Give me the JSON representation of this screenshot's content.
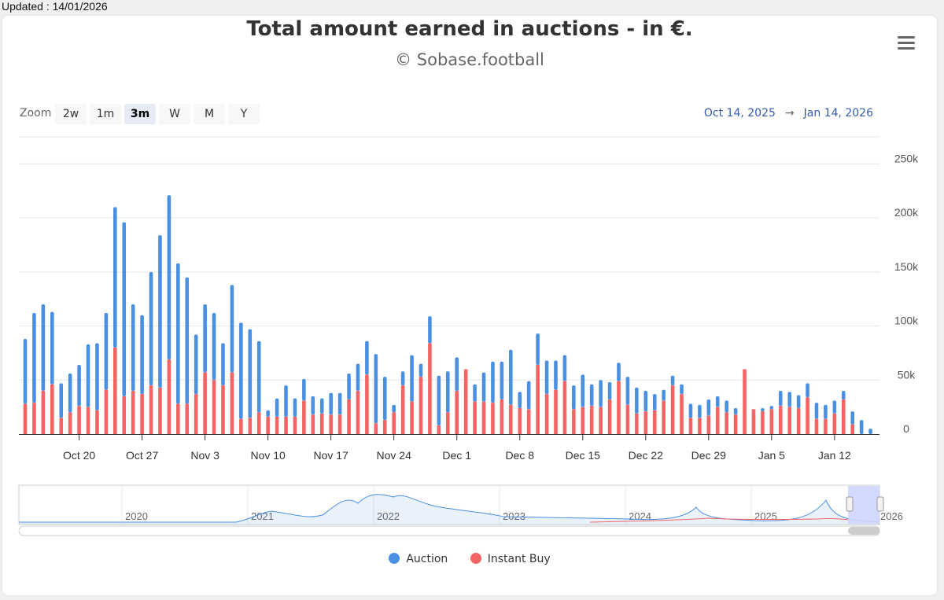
{
  "updated_label": "Updated : 14/01/2026",
  "colors": {
    "auction": "#4a90e2",
    "instant": "#f56464",
    "grid": "#e6e6e6",
    "navigator_mask": "#cfd6ff"
  },
  "chart_data": {
    "type": "bar",
    "stacked": true,
    "title": "Total amount earned in auctions - in €.",
    "subtitle": "© Sobase.football",
    "ylim": [
      0,
      275000
    ],
    "y_ticks": [
      0,
      50000,
      100000,
      150000,
      200000,
      250000
    ],
    "y_tick_labels": [
      "0",
      "50k",
      "100k",
      "150k",
      "200k",
      "250k"
    ],
    "x_start": "Oct 14, 2025",
    "x_ticks": [
      {
        "label": "Oct 20",
        "day": 6
      },
      {
        "label": "Oct 27",
        "day": 13
      },
      {
        "label": "Nov 3",
        "day": 20
      },
      {
        "label": "Nov 10",
        "day": 27
      },
      {
        "label": "Nov 17",
        "day": 34
      },
      {
        "label": "Nov 24",
        "day": 41
      },
      {
        "label": "Dec 1",
        "day": 48
      },
      {
        "label": "Dec 8",
        "day": 55
      },
      {
        "label": "Dec 15",
        "day": 62
      },
      {
        "label": "Dec 22",
        "day": 69
      },
      {
        "label": "Dec 29",
        "day": 76
      },
      {
        "label": "Jan 5",
        "day": 83
      },
      {
        "label": "Jan 12",
        "day": 90
      }
    ],
    "series": [
      {
        "name": "Auction",
        "values": [
          60000,
          83000,
          80000,
          67000,
          32000,
          36000,
          38000,
          58000,
          62000,
          71000,
          130000,
          161000,
          80000,
          73000,
          105000,
          141000,
          152000,
          130000,
          117000,
          55000,
          63000,
          62000,
          39000,
          81000,
          89000,
          82000,
          66000,
          6000,
          17000,
          29000,
          17000,
          20000,
          17000,
          14000,
          20000,
          20000,
          24000,
          25000,
          31000,
          64000,
          40000,
          7000,
          13000,
          43000,
          12000,
          25000,
          46000,
          38000,
          31000,
          0,
          16000,
          27000,
          38000,
          35000,
          51000,
          15000,
          26000,
          29000,
          31000,
          27000,
          24000,
          22000,
          30000,
          20000,
          25000,
          16000,
          17000,
          26000,
          24000,
          19000,
          15000,
          10000,
          9000,
          9000,
          13000,
          12000,
          15000,
          10000,
          11000,
          6000,
          0,
          0,
          3000,
          3000,
          14000,
          14000,
          12000,
          13000,
          15000,
          13000,
          12000,
          8000,
          12000,
          13000,
          5000
        ],
        "color": "#4a90e2"
      },
      {
        "name": "Instant Buy",
        "values": [
          28000,
          29000,
          40000,
          46000,
          15000,
          20000,
          26000,
          25000,
          22000,
          41000,
          80000,
          35000,
          40000,
          37000,
          45000,
          43000,
          69000,
          28000,
          28000,
          37000,
          57000,
          50000,
          45000,
          57000,
          14000,
          15000,
          20000,
          16000,
          16000,
          16000,
          16000,
          31000,
          18000,
          19000,
          18000,
          18000,
          32000,
          40000,
          55000,
          10000,
          13000,
          20000,
          45000,
          30000,
          53000,
          84000,
          8000,
          20000,
          40000,
          60000,
          30000,
          30000,
          29000,
          32000,
          27000,
          24000,
          23000,
          64000,
          37000,
          41000,
          49000,
          23000,
          25000,
          26000,
          25000,
          32000,
          49000,
          27000,
          19000,
          21000,
          22000,
          31000,
          45000,
          37000,
          15000,
          15000,
          17000,
          25000,
          20000,
          18000,
          60000,
          23000,
          21000,
          23000,
          26000,
          25000,
          24000,
          34000,
          14000,
          14000,
          19000,
          32000,
          9000,
          0,
          0
        ],
        "color": "#f56464"
      }
    ]
  },
  "zoom": {
    "label": "Zoom",
    "buttons": [
      "2w",
      "1m",
      "3m",
      "W",
      "M",
      "Y"
    ],
    "active": "3m"
  },
  "range": {
    "from": "Oct 14, 2025",
    "to": "Jan 14, 2026",
    "arrow": "→"
  },
  "navigator": {
    "years": [
      "2020",
      "2021",
      "2022",
      "2023",
      "2024",
      "2025",
      "2026"
    ]
  },
  "legend": [
    {
      "name": "Auction",
      "color": "#4a90e2"
    },
    {
      "name": "Instant Buy",
      "color": "#f56464"
    }
  ]
}
